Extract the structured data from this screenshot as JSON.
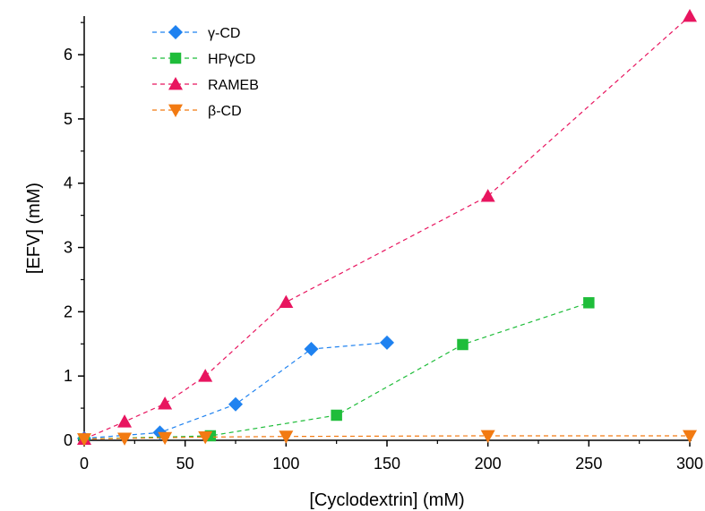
{
  "chart_data": {
    "type": "line",
    "title": "",
    "xlabel": "[Cyclodextrin] (mM)",
    "ylabel": "[EFV] (mM)",
    "xlim": [
      0,
      300
    ],
    "ylim": [
      0,
      6.6
    ],
    "xticks": [
      "0",
      "50",
      "100",
      "150",
      "200",
      "250",
      "300"
    ],
    "yticks": [
      "0",
      "1",
      "2",
      "3",
      "4",
      "5",
      "6"
    ],
    "grid": false,
    "legend_position": "top-left",
    "series": [
      {
        "name": "γ-CD",
        "marker": "diamond",
        "color": "#1f82f0",
        "x": [
          0,
          37.5,
          75,
          112.5,
          150
        ],
        "y": [
          0.03,
          0.12,
          0.56,
          1.42,
          1.52
        ]
      },
      {
        "name": "HPγCD",
        "marker": "square",
        "color": "#1fbd3a",
        "x": [
          0,
          62.5,
          125,
          187.5,
          250
        ],
        "y": [
          0.02,
          0.07,
          0.39,
          1.49,
          2.14
        ]
      },
      {
        "name": "RAMEB",
        "marker": "triangle-up",
        "color": "#e8155f",
        "x": [
          0,
          20,
          40,
          60,
          100,
          200,
          300
        ],
        "y": [
          0.02,
          0.29,
          0.57,
          1.0,
          2.15,
          3.8,
          6.6
        ]
      },
      {
        "name": "β-CD",
        "marker": "triangle-down",
        "color": "#f27a12",
        "x": [
          0,
          20,
          40,
          60,
          100,
          200,
          300
        ],
        "y": [
          0.02,
          0.03,
          0.04,
          0.05,
          0.06,
          0.07,
          0.07
        ]
      }
    ]
  }
}
